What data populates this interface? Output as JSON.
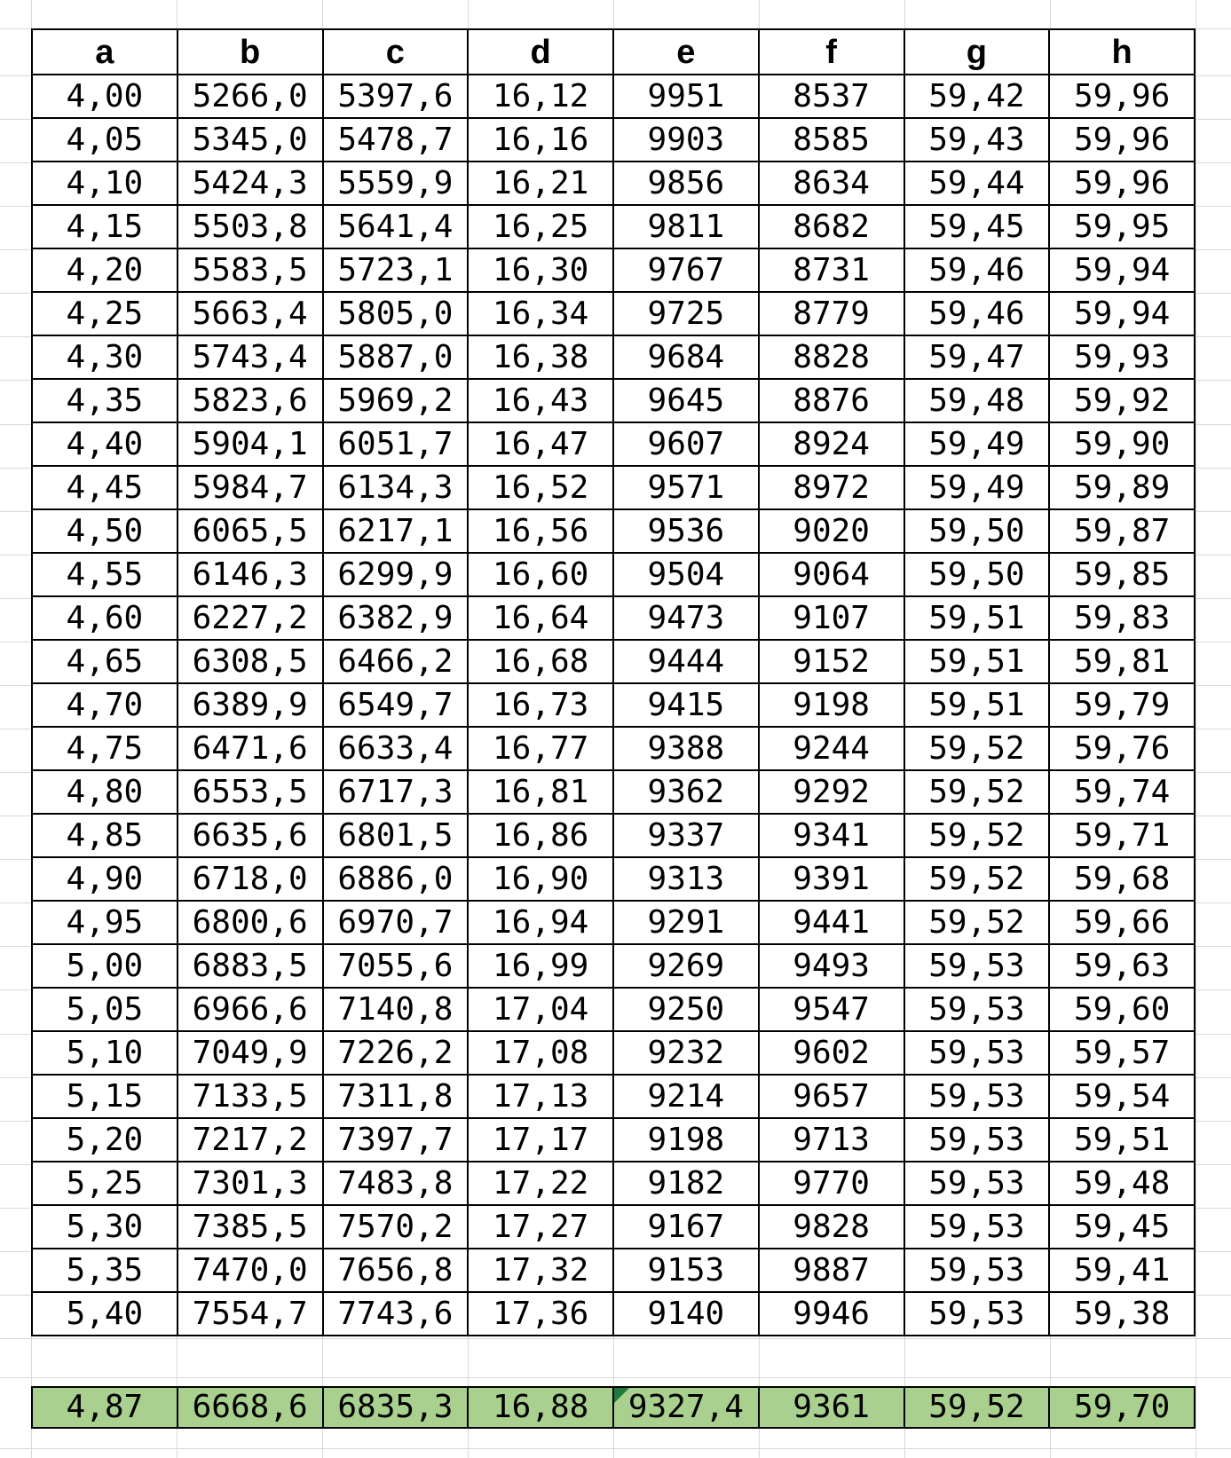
{
  "table": {
    "headers": [
      "a",
      "b",
      "c",
      "d",
      "e",
      "f",
      "g",
      "h"
    ],
    "rows": [
      [
        "4,00",
        "5266,0",
        "5397,6",
        "16,12",
        "9951",
        "8537",
        "59,42",
        "59,96"
      ],
      [
        "4,05",
        "5345,0",
        "5478,7",
        "16,16",
        "9903",
        "8585",
        "59,43",
        "59,96"
      ],
      [
        "4,10",
        "5424,3",
        "5559,9",
        "16,21",
        "9856",
        "8634",
        "59,44",
        "59,96"
      ],
      [
        "4,15",
        "5503,8",
        "5641,4",
        "16,25",
        "9811",
        "8682",
        "59,45",
        "59,95"
      ],
      [
        "4,20",
        "5583,5",
        "5723,1",
        "16,30",
        "9767",
        "8731",
        "59,46",
        "59,94"
      ],
      [
        "4,25",
        "5663,4",
        "5805,0",
        "16,34",
        "9725",
        "8779",
        "59,46",
        "59,94"
      ],
      [
        "4,30",
        "5743,4",
        "5887,0",
        "16,38",
        "9684",
        "8828",
        "59,47",
        "59,93"
      ],
      [
        "4,35",
        "5823,6",
        "5969,2",
        "16,43",
        "9645",
        "8876",
        "59,48",
        "59,92"
      ],
      [
        "4,40",
        "5904,1",
        "6051,7",
        "16,47",
        "9607",
        "8924",
        "59,49",
        "59,90"
      ],
      [
        "4,45",
        "5984,7",
        "6134,3",
        "16,52",
        "9571",
        "8972",
        "59,49",
        "59,89"
      ],
      [
        "4,50",
        "6065,5",
        "6217,1",
        "16,56",
        "9536",
        "9020",
        "59,50",
        "59,87"
      ],
      [
        "4,55",
        "6146,3",
        "6299,9",
        "16,60",
        "9504",
        "9064",
        "59,50",
        "59,85"
      ],
      [
        "4,60",
        "6227,2",
        "6382,9",
        "16,64",
        "9473",
        "9107",
        "59,51",
        "59,83"
      ],
      [
        "4,65",
        "6308,5",
        "6466,2",
        "16,68",
        "9444",
        "9152",
        "59,51",
        "59,81"
      ],
      [
        "4,70",
        "6389,9",
        "6549,7",
        "16,73",
        "9415",
        "9198",
        "59,51",
        "59,79"
      ],
      [
        "4,75",
        "6471,6",
        "6633,4",
        "16,77",
        "9388",
        "9244",
        "59,52",
        "59,76"
      ],
      [
        "4,80",
        "6553,5",
        "6717,3",
        "16,81",
        "9362",
        "9292",
        "59,52",
        "59,74"
      ],
      [
        "4,85",
        "6635,6",
        "6801,5",
        "16,86",
        "9337",
        "9341",
        "59,52",
        "59,71"
      ],
      [
        "4,90",
        "6718,0",
        "6886,0",
        "16,90",
        "9313",
        "9391",
        "59,52",
        "59,68"
      ],
      [
        "4,95",
        "6800,6",
        "6970,7",
        "16,94",
        "9291",
        "9441",
        "59,52",
        "59,66"
      ],
      [
        "5,00",
        "6883,5",
        "7055,6",
        "16,99",
        "9269",
        "9493",
        "59,53",
        "59,63"
      ],
      [
        "5,05",
        "6966,6",
        "7140,8",
        "17,04",
        "9250",
        "9547",
        "59,53",
        "59,60"
      ],
      [
        "5,10",
        "7049,9",
        "7226,2",
        "17,08",
        "9232",
        "9602",
        "59,53",
        "59,57"
      ],
      [
        "5,15",
        "7133,5",
        "7311,8",
        "17,13",
        "9214",
        "9657",
        "59,53",
        "59,54"
      ],
      [
        "5,20",
        "7217,2",
        "7397,7",
        "17,17",
        "9198",
        "9713",
        "59,53",
        "59,51"
      ],
      [
        "5,25",
        "7301,3",
        "7483,8",
        "17,22",
        "9182",
        "9770",
        "59,53",
        "59,48"
      ],
      [
        "5,30",
        "7385,5",
        "7570,2",
        "17,27",
        "9167",
        "9828",
        "59,53",
        "59,45"
      ],
      [
        "5,35",
        "7470,0",
        "7656,8",
        "17,32",
        "9153",
        "9887",
        "59,53",
        "59,41"
      ],
      [
        "5,40",
        "7554,7",
        "7743,6",
        "17,36",
        "9140",
        "9946",
        "59,53",
        "59,38"
      ]
    ],
    "summary_row": [
      "4,87",
      "6668,6",
      "6835,3",
      "16,88",
      "9327,4",
      "9361",
      "59,52",
      "59,70"
    ],
    "summary_marker_column": 4
  },
  "colors": {
    "summary_fill": "#a9d08e",
    "marker_triangle": "#217a3c",
    "table_border": "#000000",
    "sheet_gridline": "#d9d9d9",
    "text": "#000000"
  }
}
